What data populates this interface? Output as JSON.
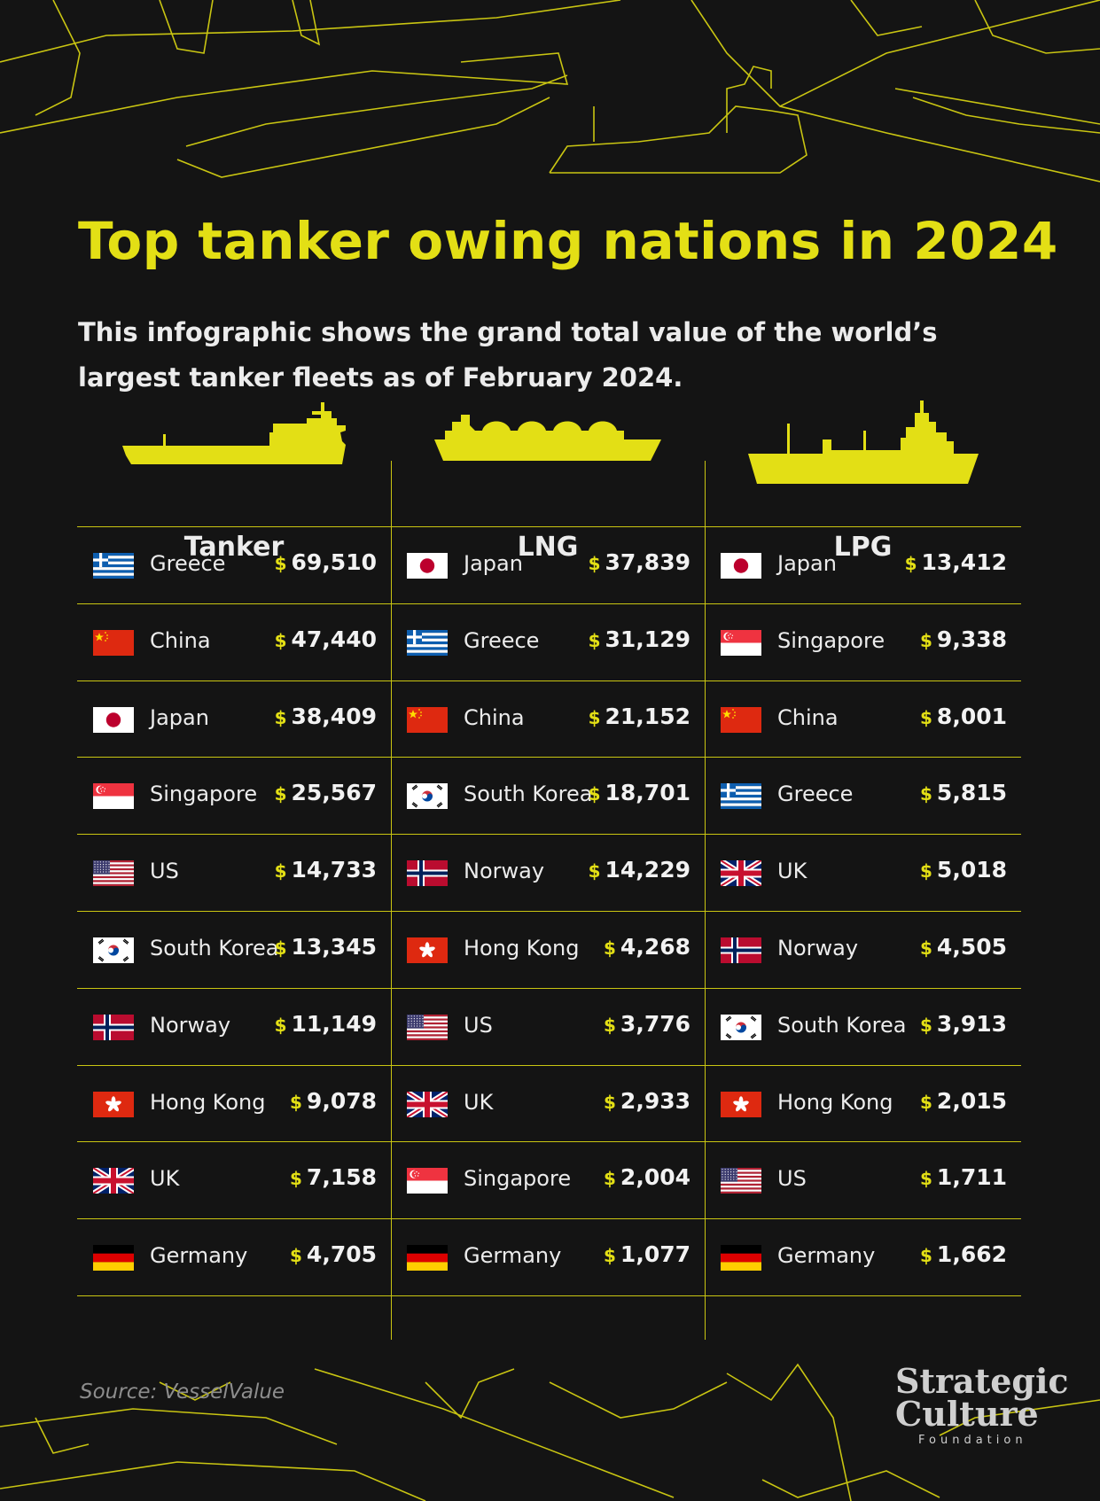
{
  "title": "Top tanker owing nations in 2024",
  "subtitle": "This infographic shows the grand total value of the world’s largest tanker fleets as of February 2024.",
  "source": "Source: VesselValue",
  "logo": {
    "line1": "Strategic",
    "line2": "Culture",
    "line3": "Foundation"
  },
  "colors": {
    "accent": "#e3df15",
    "background": "#141414",
    "text": "#ececec"
  },
  "chart_data": {
    "type": "table",
    "currency_symbol": "$",
    "columns": [
      {
        "name": "Tanker",
        "icon": "oil-tanker-ship-icon",
        "rows": [
          {
            "country": "Greece",
            "flag": "greece",
            "value": "69,510"
          },
          {
            "country": "China",
            "flag": "china",
            "value": "47,440"
          },
          {
            "country": "Japan",
            "flag": "japan",
            "value": "38,409"
          },
          {
            "country": "Singapore",
            "flag": "singapore",
            "value": "25,567"
          },
          {
            "country": "US",
            "flag": "us",
            "value": "14,733"
          },
          {
            "country": "South Korea",
            "flag": "south-korea",
            "value": "13,345"
          },
          {
            "country": "Norway",
            "flag": "norway",
            "value": "11,149"
          },
          {
            "country": "Hong Kong",
            "flag": "hong-kong",
            "value": "9,078"
          },
          {
            "country": "UK",
            "flag": "uk",
            "value": "7,158"
          },
          {
            "country": "Germany",
            "flag": "germany",
            "value": "4,705"
          }
        ]
      },
      {
        "name": "LNG",
        "icon": "lng-carrier-ship-icon",
        "rows": [
          {
            "country": "Japan",
            "flag": "japan",
            "value": "37,839"
          },
          {
            "country": "Greece",
            "flag": "greece",
            "value": "31,129"
          },
          {
            "country": "China",
            "flag": "china",
            "value": "21,152"
          },
          {
            "country": "South Korea",
            "flag": "south-korea",
            "value": "18,701"
          },
          {
            "country": "Norway",
            "flag": "norway",
            "value": "14,229"
          },
          {
            "country": "Hong Kong",
            "flag": "hong-kong",
            "value": "4,268"
          },
          {
            "country": "US",
            "flag": "us",
            "value": "3,776"
          },
          {
            "country": "UK",
            "flag": "uk",
            "value": "2,933"
          },
          {
            "country": "Singapore",
            "flag": "singapore",
            "value": "2,004"
          },
          {
            "country": "Germany",
            "flag": "germany",
            "value": "1,077"
          }
        ]
      },
      {
        "name": "LPG",
        "icon": "lpg-carrier-ship-icon",
        "rows": [
          {
            "country": "Japan",
            "flag": "japan",
            "value": "13,412"
          },
          {
            "country": "Singapore",
            "flag": "singapore",
            "value": "9,338"
          },
          {
            "country": "China",
            "flag": "china",
            "value": "8,001"
          },
          {
            "country": "Greece",
            "flag": "greece",
            "value": "5,815"
          },
          {
            "country": "UK",
            "flag": "uk",
            "value": "5,018"
          },
          {
            "country": "Norway",
            "flag": "norway",
            "value": "4,505"
          },
          {
            "country": "South Korea",
            "flag": "south-korea",
            "value": "3,913"
          },
          {
            "country": "Hong Kong",
            "flag": "hong-kong",
            "value": "2,015"
          },
          {
            "country": "US",
            "flag": "us",
            "value": "1,711"
          },
          {
            "country": "Germany",
            "flag": "germany",
            "value": "1,662"
          }
        ]
      }
    ]
  }
}
